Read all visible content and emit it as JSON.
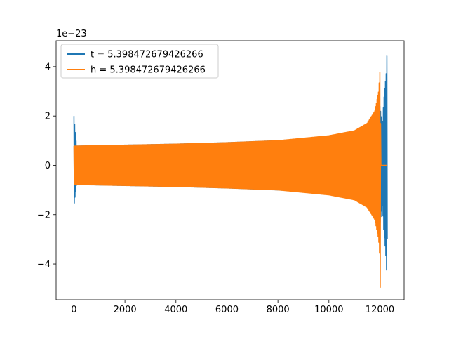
{
  "chart_data": {
    "type": "line",
    "title": "",
    "xlabel": "",
    "ylabel": "",
    "y_offset_text": "1e−23",
    "xlim": [
      -700,
      12950
    ],
    "ylim": [
      -5.45,
      5.05
    ],
    "x_ticks": [
      0,
      2000,
      4000,
      6000,
      8000,
      10000,
      12000
    ],
    "x_tick_labels": [
      "0",
      "2000",
      "4000",
      "6000",
      "8000",
      "10000",
      "12000"
    ],
    "y_ticks": [
      -4,
      -2,
      0,
      2,
      4
    ],
    "y_tick_labels": [
      "−4",
      "−2",
      "0",
      "2",
      "4"
    ],
    "grid": false,
    "legend_position": "upper-left",
    "series": [
      {
        "name": "t = 5.398472679426266",
        "color": "#1f77b4",
        "description": "oscillating waveform: spike at x=0 (peak 2.0, min -1.65), amplitude ~0.78 growing to a chirp near x≈12150, burst to +4.6/-4.9 at x≈12280, ending ~12300",
        "envelope_x": [
          0,
          100,
          2000,
          4000,
          6000,
          8000,
          10000,
          11000,
          11500,
          11800,
          12000,
          12100,
          12150,
          12200,
          12250,
          12280,
          12300
        ],
        "envelope_upper": [
          2.0,
          0.78,
          0.82,
          0.86,
          0.92,
          1.0,
          1.15,
          1.35,
          1.6,
          2.0,
          2.4,
          1.6,
          2.6,
          3.2,
          3.75,
          4.6,
          0.0
        ],
        "envelope_lower": [
          -1.65,
          -0.78,
          -0.82,
          -0.86,
          -0.92,
          -1.0,
          -1.15,
          -1.35,
          -1.6,
          -2.0,
          -2.4,
          -1.6,
          -2.6,
          -3.2,
          -3.9,
          -4.9,
          0.0
        ]
      },
      {
        "name": "h = 5.398472679426266",
        "color": "#ff7f0e",
        "description": "oscillating waveform: amplitude ~0.78 at x=0 growing to a merger near x≈12020 (peak +4.6, min -4.95), then a flat segment at 0 until ~12280",
        "envelope_x": [
          0,
          2000,
          4000,
          6000,
          8000,
          10000,
          11000,
          11500,
          11800,
          11950,
          12000,
          12010,
          12020,
          12030,
          12280
        ],
        "envelope_upper": [
          0.78,
          0.82,
          0.86,
          0.92,
          1.0,
          1.2,
          1.4,
          1.7,
          2.2,
          3.0,
          3.8,
          4.6,
          4.6,
          0.0,
          0.0
        ],
        "envelope_lower": [
          -0.78,
          -0.82,
          -0.86,
          -0.92,
          -1.0,
          -1.2,
          -1.4,
          -1.7,
          -2.2,
          -3.0,
          -3.8,
          -4.95,
          -4.95,
          0.0,
          0.0
        ]
      }
    ]
  }
}
